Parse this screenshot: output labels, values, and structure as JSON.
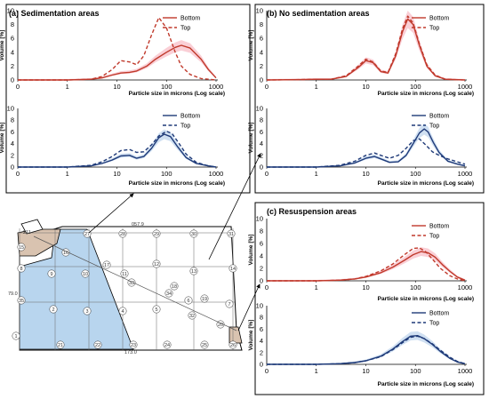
{
  "panels": {
    "a": {
      "title": "(a) Sedimentation areas"
    },
    "b": {
      "title": "(b) No sedimentation areas"
    },
    "c": {
      "title": "(c) Resuspension areas"
    }
  },
  "colors": {
    "red": "#c0392b",
    "blue": "#1f3a78",
    "pink": "#f5a8b4",
    "lightblue": "#a9c6e8",
    "tan": "#d9c3b0",
    "shade": "#b8d5ee"
  },
  "map": {
    "labels": [
      "211",
      "057.9",
      "79.0",
      "173.0"
    ],
    "stations": [
      "1",
      "2",
      "3",
      "4",
      "5",
      "6",
      "7",
      "8",
      "9",
      "10",
      "11",
      "12",
      "13",
      "14",
      "15",
      "16",
      "17",
      "18",
      "19",
      "20",
      "21",
      "22",
      "23",
      "24",
      "25",
      "26",
      "27",
      "28",
      "29",
      "30",
      "31",
      "32",
      "33",
      "34",
      "35"
    ]
  },
  "chart_data": [
    {
      "id": "a-top",
      "type": "line",
      "title": "(a) Sedimentation areas",
      "xlabel": "Particle size in microns (Log scale)",
      "ylabel": "Volume [%]",
      "xscale": "log",
      "xlim": [
        0.1,
        1000
      ],
      "ylim": [
        0,
        10
      ],
      "xticks": [
        "0",
        "1",
        "10",
        "100",
        "1000"
      ],
      "yticks": [
        "0",
        "2",
        "4",
        "6",
        "8",
        "10"
      ],
      "legend": "top-right",
      "series": [
        {
          "name": "Bottom",
          "color": "#c0392b",
          "dash": false,
          "x": [
            0.1,
            1,
            3,
            5,
            8,
            12,
            18,
            25,
            40,
            60,
            100,
            150,
            200,
            300,
            500,
            700,
            1000
          ],
          "y": [
            0,
            0,
            0.1,
            0.3,
            0.7,
            1.0,
            1.1,
            1.3,
            2.0,
            3.0,
            4.0,
            4.7,
            5.0,
            4.6,
            3.0,
            1.5,
            0.3
          ]
        },
        {
          "name": "Top",
          "color": "#c0392b",
          "dash": true,
          "x": [
            0.1,
            1,
            3,
            5,
            8,
            12,
            18,
            25,
            35,
            50,
            70,
            100,
            150,
            200,
            300,
            500,
            1000
          ],
          "y": [
            0,
            0,
            0.1,
            0.5,
            1.5,
            2.8,
            2.6,
            2.2,
            3.5,
            6.5,
            9.0,
            7.5,
            4.0,
            2.0,
            0.8,
            0.2,
            0
          ]
        }
      ]
    },
    {
      "id": "a-bottom",
      "type": "line",
      "xlabel": "Particle size in microns (Log scale)",
      "ylabel": "Volume [%]",
      "xscale": "log",
      "xlim": [
        0.1,
        1000
      ],
      "ylim": [
        0,
        10
      ],
      "xticks": [
        "0",
        "1",
        "10",
        "100",
        "1000"
      ],
      "yticks": [
        "0",
        "2",
        "4",
        "6",
        "8",
        "10"
      ],
      "legend": "top-right",
      "series": [
        {
          "name": "Bottom",
          "color": "#1f3a78",
          "dash": false,
          "x": [
            0.1,
            1,
            3,
            5,
            8,
            12,
            18,
            25,
            35,
            50,
            70,
            90,
            120,
            170,
            250,
            400,
            700,
            1000
          ],
          "y": [
            0,
            0,
            0.2,
            0.6,
            1.2,
            1.9,
            2.0,
            1.5,
            1.8,
            3.2,
            5.0,
            5.6,
            5.2,
            3.4,
            1.6,
            0.6,
            0.2,
            0
          ]
        },
        {
          "name": "Top",
          "color": "#1f3a78",
          "dash": true,
          "x": [
            0.1,
            1,
            3,
            5,
            8,
            12,
            18,
            25,
            35,
            50,
            70,
            100,
            130,
            180,
            250,
            400,
            700,
            1000
          ],
          "y": [
            0,
            0,
            0.3,
            0.9,
            1.8,
            2.8,
            3.0,
            2.5,
            2.6,
            3.8,
            5.3,
            6.1,
            5.7,
            4.0,
            2.2,
            0.8,
            0.2,
            0
          ]
        }
      ]
    },
    {
      "id": "b-top",
      "type": "line",
      "title": "(b) No sedimentation areas",
      "xlabel": "Particle size in microns (Log scale)",
      "ylabel": "Volume [%]",
      "xscale": "log",
      "xlim": [
        0.1,
        1000
      ],
      "ylim": [
        0,
        10
      ],
      "xticks": [
        "0",
        "1",
        "10",
        "100",
        "1000"
      ],
      "yticks": [
        "0",
        "2",
        "4",
        "6",
        "8",
        "10"
      ],
      "legend": "top-right",
      "series": [
        {
          "name": "Bottom",
          "color": "#c0392b",
          "dash": false,
          "x": [
            0.1,
            0.5,
            1,
            2,
            4,
            7,
            10,
            14,
            20,
            28,
            40,
            55,
            70,
            90,
            120,
            170,
            250,
            400,
            1000
          ],
          "y": [
            0,
            0.05,
            0.1,
            0.1,
            0.5,
            1.8,
            2.8,
            2.5,
            1.2,
            1.0,
            3.5,
            7.0,
            8.8,
            8.0,
            5.0,
            2.0,
            0.6,
            0.1,
            0
          ]
        },
        {
          "name": "Top",
          "color": "#c0392b",
          "dash": true,
          "x": [
            0.1,
            0.5,
            1,
            2,
            4,
            7,
            10,
            14,
            20,
            28,
            40,
            55,
            70,
            90,
            120,
            170,
            250,
            400,
            1000
          ],
          "y": [
            0,
            0.05,
            0.1,
            0.1,
            0.6,
            2.0,
            3.0,
            2.6,
            1.3,
            1.1,
            3.8,
            7.4,
            9.2,
            8.2,
            5.2,
            2.2,
            0.7,
            0.1,
            0
          ]
        }
      ]
    },
    {
      "id": "b-bottom",
      "type": "line",
      "xlabel": "Particle size in microns (Log scale)",
      "ylabel": "Volume [%]",
      "xscale": "log",
      "xlim": [
        0.1,
        1000
      ],
      "ylim": [
        0,
        10
      ],
      "xticks": [
        "0",
        "1",
        "10",
        "100",
        "1000"
      ],
      "yticks": [
        "0",
        "2",
        "4",
        "6",
        "8",
        "10"
      ],
      "legend": "top-right",
      "series": [
        {
          "name": "Bottom",
          "color": "#1f3a78",
          "dash": false,
          "x": [
            0.1,
            1,
            3,
            6,
            10,
            15,
            20,
            30,
            45,
            65,
            90,
            120,
            150,
            180,
            230,
            300,
            450,
            700,
            1000
          ],
          "y": [
            0,
            0,
            0.2,
            0.7,
            1.5,
            1.8,
            1.4,
            0.8,
            0.9,
            2.0,
            4.0,
            5.8,
            6.5,
            6.0,
            4.2,
            2.5,
            1.0,
            0.5,
            0.2
          ]
        },
        {
          "name": "Top",
          "color": "#1f3a78",
          "dash": true,
          "x": [
            0.1,
            1,
            3,
            6,
            10,
            15,
            20,
            30,
            45,
            65,
            90,
            120,
            160,
            220,
            300,
            450,
            700,
            1000
          ],
          "y": [
            0,
            0,
            0.3,
            1.0,
            2.0,
            2.4,
            2.0,
            1.5,
            2.0,
            3.2,
            4.5,
            4.8,
            3.8,
            2.6,
            2.0,
            1.4,
            0.9,
            0.5
          ]
        }
      ]
    },
    {
      "id": "c-top",
      "type": "line",
      "title": "(c) Resuspension areas",
      "xlabel": "Particle size in microns (Log scale)",
      "ylabel": "Volume [%]",
      "xscale": "log",
      "xlim": [
        0.1,
        1000
      ],
      "ylim": [
        0,
        10
      ],
      "xticks": [
        "0",
        "1",
        "10",
        "100",
        "1000"
      ],
      "yticks": [
        "0",
        "2",
        "4",
        "6",
        "8",
        "10"
      ],
      "legend": "top-right",
      "series": [
        {
          "name": "Bottom",
          "color": "#c0392b",
          "dash": false,
          "x": [
            0.1,
            1,
            3,
            6,
            10,
            20,
            35,
            60,
            90,
            130,
            180,
            250,
            350,
            500,
            700,
            1000
          ],
          "y": [
            0,
            0,
            0.1,
            0.3,
            0.6,
            1.3,
            2.2,
            3.3,
            4.2,
            4.7,
            4.5,
            3.8,
            2.6,
            1.5,
            0.6,
            0.1
          ]
        },
        {
          "name": "Top",
          "color": "#c0392b",
          "dash": true,
          "x": [
            0.1,
            1,
            3,
            6,
            10,
            20,
            35,
            60,
            90,
            120,
            160,
            220,
            320,
            500,
            700,
            1000
          ],
          "y": [
            0,
            0,
            0.1,
            0.3,
            0.7,
            1.6,
            2.7,
            4.2,
            5.2,
            5.3,
            4.7,
            3.5,
            2.0,
            0.8,
            0.3,
            0
          ]
        }
      ]
    },
    {
      "id": "c-bottom",
      "type": "line",
      "xlabel": "Particle size in microns (Log scale)",
      "ylabel": "Volume [%]",
      "xscale": "log",
      "xlim": [
        0.1,
        1000
      ],
      "ylim": [
        0,
        10
      ],
      "xticks": [
        "0",
        "1",
        "10",
        "100",
        "1000"
      ],
      "yticks": [
        "0",
        "2",
        "4",
        "6",
        "8",
        "10"
      ],
      "legend": "top-right",
      "series": [
        {
          "name": "Bottom",
          "color": "#1f3a78",
          "dash": false,
          "x": [
            0.1,
            1,
            3,
            6,
            10,
            20,
            35,
            55,
            80,
            110,
            150,
            220,
            320,
            500,
            700,
            1000
          ],
          "y": [
            0,
            0,
            0.1,
            0.3,
            0.6,
            1.4,
            2.6,
            3.9,
            4.8,
            4.9,
            4.4,
            3.4,
            2.2,
            1.0,
            0.4,
            0.1
          ]
        },
        {
          "name": "Top",
          "color": "#1f3a78",
          "dash": true,
          "x": [
            0.1,
            1,
            3,
            6,
            10,
            20,
            35,
            55,
            80,
            110,
            150,
            220,
            320,
            500,
            700,
            1000
          ],
          "y": [
            0,
            0,
            0.1,
            0.3,
            0.6,
            1.3,
            2.5,
            3.7,
            4.6,
            4.8,
            4.4,
            3.5,
            2.4,
            1.2,
            0.5,
            0.1
          ]
        }
      ]
    }
  ]
}
